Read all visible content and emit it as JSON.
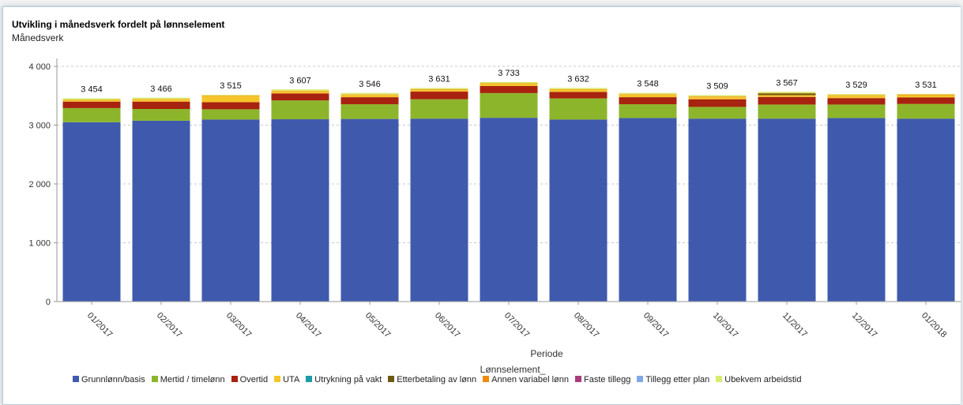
{
  "header": {
    "title": "Utvikling i månedsverk fordelt på lønnselement",
    "subtitle": "Månedsverk"
  },
  "legend": {
    "title": "Lønnselement_"
  },
  "chart_data": {
    "type": "bar",
    "stacked": true,
    "title": "Utvikling i månedsverk fordelt på lønnselement",
    "ylabel": "Månedsverk",
    "xlabel": "Periode",
    "ylim": [
      0,
      4000
    ],
    "yticks": [
      0,
      1000,
      2000,
      3000,
      4000
    ],
    "ytick_labels": [
      "0",
      "1 000",
      "2 000",
      "3 000",
      "4 000"
    ],
    "grid": true,
    "legend_placement": "bottom",
    "categories": [
      "01/2017",
      "02/2017",
      "03/2017",
      "04/2017",
      "05/2017",
      "06/2017",
      "07/2017",
      "08/2017",
      "09/2017",
      "10/2017",
      "11/2017",
      "12/2017",
      "01/2018"
    ],
    "totals": [
      3454,
      3466,
      3515,
      3607,
      3546,
      3631,
      3733,
      3632,
      3548,
      3509,
      3567,
      3529,
      3531
    ],
    "total_labels": [
      "3 454",
      "3 466",
      "3 515",
      "3 607",
      "3 546",
      "3 631",
      "3 733",
      "3 632",
      "3 548",
      "3 509",
      "3 567",
      "3 529",
      "3 531"
    ],
    "series": [
      {
        "name": "Grunnlønn/basis",
        "color": "#3f5aad",
        "values": [
          3050,
          3075,
          3095,
          3100,
          3105,
          3110,
          3125,
          3095,
          3120,
          3110,
          3110,
          3120,
          3110
        ]
      },
      {
        "name": "Mertid / timelønn",
        "color": "#8db52b",
        "values": [
          240,
          200,
          175,
          320,
          250,
          330,
          420,
          360,
          235,
          200,
          240,
          230,
          250
        ]
      },
      {
        "name": "Overtid",
        "color": "#a8230f",
        "values": [
          110,
          125,
          120,
          120,
          120,
          130,
          120,
          110,
          120,
          130,
          130,
          110,
          110
        ]
      },
      {
        "name": "UTA",
        "color": "#f5c52a",
        "values": [
          30,
          40,
          110,
          40,
          40,
          30,
          40,
          40,
          45,
          40,
          30,
          40,
          40
        ]
      },
      {
        "name": "Utrykning på vakt",
        "color": "#1e9ba8",
        "values": [
          0,
          0,
          0,
          0,
          0,
          0,
          0,
          0,
          0,
          0,
          0,
          0,
          0
        ]
      },
      {
        "name": "Etterbetaling av lønn",
        "color": "#6d5a12",
        "values": [
          0,
          0,
          0,
          0,
          0,
          0,
          0,
          0,
          0,
          0,
          30,
          0,
          0
        ]
      },
      {
        "name": "Annen variabel lønn",
        "color": "#f08a0b",
        "values": [
          4,
          6,
          5,
          7,
          6,
          10,
          8,
          7,
          8,
          9,
          7,
          9,
          11
        ]
      },
      {
        "name": "Faste tillegg",
        "color": "#a73d7c",
        "values": [
          0,
          0,
          0,
          0,
          0,
          0,
          0,
          0,
          0,
          0,
          0,
          0,
          0
        ]
      },
      {
        "name": "Tillegg etter plan",
        "color": "#80a8e8",
        "values": [
          0,
          0,
          0,
          0,
          0,
          0,
          0,
          0,
          0,
          0,
          0,
          0,
          0
        ]
      },
      {
        "name": "Ubekvem arbeidstid",
        "color": "#d9eb6c",
        "values": [
          20,
          20,
          10,
          20,
          25,
          21,
          20,
          20,
          20,
          20,
          20,
          20,
          10
        ]
      }
    ]
  }
}
